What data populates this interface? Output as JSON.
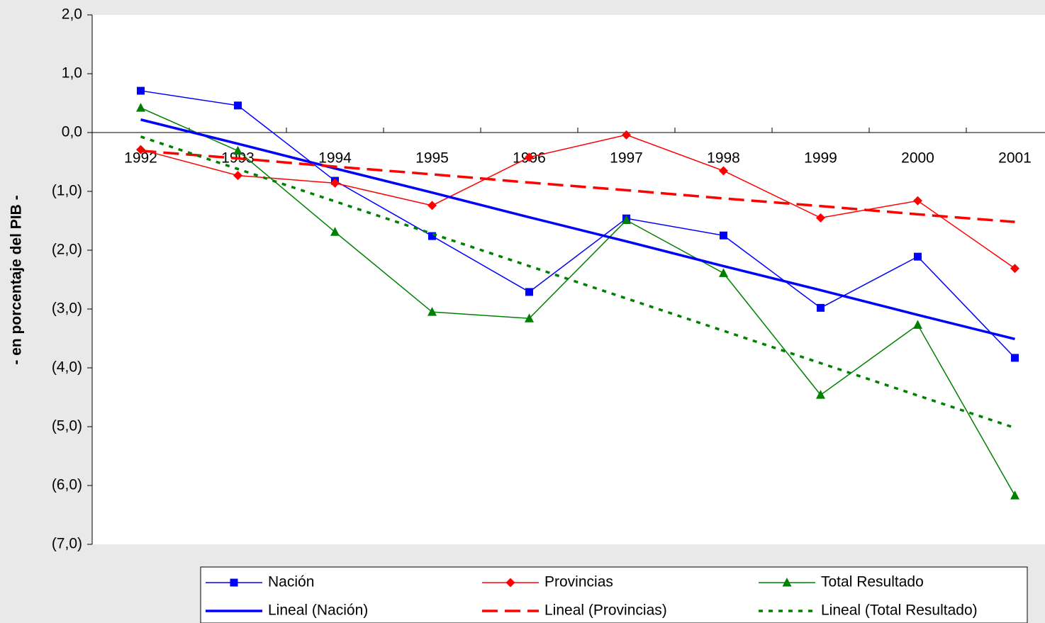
{
  "chart_data": {
    "type": "line",
    "y_label": "- en porcentaje del PIB -",
    "categories": [
      "1992",
      "1993",
      "1994",
      "1995",
      "1996",
      "1997",
      "1998",
      "1999",
      "2000",
      "2001"
    ],
    "series": [
      {
        "name": "Nación",
        "color": "#0000ff",
        "marker": "square",
        "dash": "solid",
        "width": 1.5,
        "values": [
          0.71,
          0.46,
          -0.82,
          -1.76,
          -2.71,
          -1.46,
          -1.75,
          -2.98,
          -2.11,
          -3.83
        ]
      },
      {
        "name": "Provincias",
        "color": "#ff0000",
        "marker": "diamond",
        "dash": "solid",
        "width": 1.5,
        "values": [
          -0.29,
          -0.73,
          -0.86,
          -1.24,
          -0.42,
          -0.04,
          -0.65,
          -1.45,
          -1.16,
          -2.31
        ]
      },
      {
        "name": "Total Resultado",
        "color": "#008000",
        "marker": "triangle",
        "dash": "solid",
        "width": 1.5,
        "values": [
          0.42,
          -0.31,
          -1.69,
          -3.05,
          -3.16,
          -1.49,
          -2.39,
          -4.46,
          -3.27,
          -6.17
        ]
      },
      {
        "name": "Lineal (Nación)",
        "color": "#0000ff",
        "marker": "none",
        "dash": "solid",
        "width": 3.5,
        "values": [
          0.22,
          -0.19,
          -0.61,
          -1.02,
          -1.44,
          -1.85,
          -2.27,
          -2.68,
          -3.1,
          -3.51
        ]
      },
      {
        "name": "Lineal (Provincias)",
        "color": "#ff0000",
        "marker": "none",
        "dash": "dashed",
        "width": 3.5,
        "values": [
          -0.31,
          -0.44,
          -0.58,
          -0.71,
          -0.85,
          -0.98,
          -1.12,
          -1.25,
          -1.39,
          -1.52
        ]
      },
      {
        "name": "Lineal (Total Resultado)",
        "color": "#008000",
        "marker": "none",
        "dash": "dotted",
        "width": 3.5,
        "values": [
          -0.07,
          -0.62,
          -1.17,
          -1.72,
          -2.27,
          -2.82,
          -3.37,
          -3.92,
          -4.47,
          -5.02
        ]
      }
    ],
    "ylim": [
      -7,
      2
    ],
    "yticks": [
      {
        "value": 2,
        "label": "2,0"
      },
      {
        "value": 1,
        "label": "1,0"
      },
      {
        "value": 0,
        "label": "0,0"
      },
      {
        "value": -1,
        "label": "(1,0)"
      },
      {
        "value": -2,
        "label": "(2,0)"
      },
      {
        "value": -3,
        "label": "(3,0)"
      },
      {
        "value": -4,
        "label": "(4,0)"
      },
      {
        "value": -5,
        "label": "(5,0)"
      },
      {
        "value": -6,
        "label": "(6,0)"
      },
      {
        "value": -7,
        "label": "(7,0)"
      }
    ],
    "grid": false,
    "legend": "bottom"
  }
}
